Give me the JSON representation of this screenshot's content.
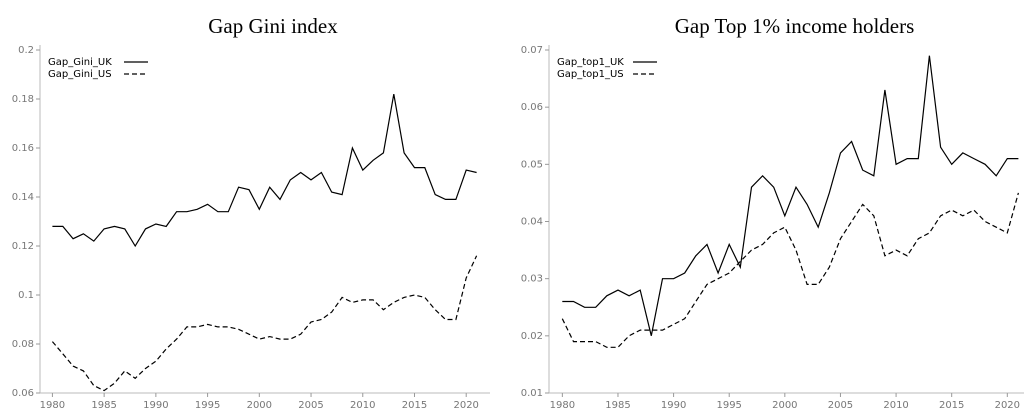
{
  "chart_data": [
    {
      "type": "line",
      "title": "Gap Gini index",
      "x": [
        1980,
        1981,
        1982,
        1983,
        1984,
        1985,
        1986,
        1987,
        1988,
        1989,
        1990,
        1991,
        1992,
        1993,
        1994,
        1995,
        1996,
        1997,
        1998,
        1999,
        2000,
        2001,
        2002,
        2003,
        2004,
        2005,
        2006,
        2007,
        2008,
        2009,
        2010,
        2011,
        2012,
        2013,
        2014,
        2015,
        2016,
        2017,
        2018,
        2019,
        2020,
        2021
      ],
      "series": [
        {
          "name": "Gap_Gini_UK",
          "color": "#000000",
          "dash": "solid",
          "values": [
            0.128,
            0.128,
            0.123,
            0.125,
            0.122,
            0.127,
            0.128,
            0.127,
            0.12,
            0.127,
            0.129,
            0.128,
            0.134,
            0.134,
            0.135,
            0.137,
            0.134,
            0.134,
            0.144,
            0.143,
            0.135,
            0.144,
            0.139,
            0.147,
            0.15,
            0.147,
            0.15,
            0.142,
            0.141,
            0.16,
            0.151,
            0.155,
            0.158,
            0.182,
            0.158,
            0.152,
            0.152,
            0.141,
            0.139,
            0.139,
            0.151,
            0.15
          ]
        },
        {
          "name": "Gap_Gini_US",
          "color": "#000000",
          "dash": "dashed",
          "values": [
            0.081,
            0.076,
            0.071,
            0.069,
            0.063,
            0.061,
            0.064,
            0.069,
            0.066,
            0.07,
            0.073,
            0.078,
            0.082,
            0.087,
            0.087,
            0.088,
            0.087,
            0.087,
            0.086,
            0.084,
            0.082,
            0.083,
            0.082,
            0.082,
            0.084,
            0.089,
            0.09,
            0.093,
            0.099,
            0.097,
            0.098,
            0.098,
            0.094,
            0.097,
            0.099,
            0.1,
            0.099,
            0.094,
            0.09,
            0.09,
            0.107,
            0.116
          ]
        }
      ],
      "xlim": [
        1978.8,
        2022.3
      ],
      "xticks": [
        1980,
        1985,
        1990,
        1995,
        2000,
        2005,
        2010,
        2015,
        2020
      ],
      "ylim": [
        0.06,
        0.2
      ],
      "yticks": [
        0.06,
        0.08,
        0.1,
        0.12,
        0.14,
        0.16,
        0.18,
        0.2
      ],
      "legend": "upper left"
    },
    {
      "type": "line",
      "title": "Gap Top 1% income holders",
      "x": [
        1980,
        1981,
        1982,
        1983,
        1984,
        1985,
        1986,
        1987,
        1988,
        1989,
        1990,
        1991,
        1992,
        1993,
        1994,
        1995,
        1996,
        1997,
        1998,
        1999,
        2000,
        2001,
        2002,
        2003,
        2004,
        2005,
        2006,
        2007,
        2008,
        2009,
        2010,
        2011,
        2012,
        2013,
        2014,
        2015,
        2016,
        2017,
        2018,
        2019,
        2020,
        2021
      ],
      "series": [
        {
          "name": "Gap_top1_UK",
          "color": "#000000",
          "dash": "solid",
          "values": [
            0.026,
            0.026,
            0.025,
            0.025,
            0.027,
            0.028,
            0.027,
            0.028,
            0.02,
            0.03,
            0.03,
            0.031,
            0.034,
            0.036,
            0.031,
            0.036,
            0.032,
            0.046,
            0.048,
            0.046,
            0.041,
            0.046,
            0.043,
            0.039,
            0.045,
            0.052,
            0.054,
            0.049,
            0.048,
            0.063,
            0.05,
            0.051,
            0.051,
            0.069,
            0.053,
            0.05,
            0.052,
            0.051,
            0.05,
            0.048,
            0.051,
            0.051
          ]
        },
        {
          "name": "Gap_top1_US",
          "color": "#000000",
          "dash": "dashed",
          "values": [
            0.023,
            0.019,
            0.019,
            0.019,
            0.018,
            0.018,
            0.02,
            0.021,
            0.021,
            0.021,
            0.022,
            0.023,
            0.026,
            0.029,
            0.03,
            0.031,
            0.033,
            0.035,
            0.036,
            0.038,
            0.039,
            0.035,
            0.029,
            0.029,
            0.032,
            0.037,
            0.04,
            0.043,
            0.041,
            0.034,
            0.035,
            0.034,
            0.037,
            0.038,
            0.041,
            0.042,
            0.041,
            0.042,
            0.04,
            0.039,
            0.038,
            0.045
          ]
        }
      ],
      "xlim": [
        1978.8,
        2021.5
      ],
      "xticks": [
        1980,
        1985,
        1990,
        1995,
        2000,
        2005,
        2010,
        2015,
        2020
      ],
      "ylim": [
        0.01,
        0.07
      ],
      "yticks": [
        0.01,
        0.02,
        0.03,
        0.04,
        0.05,
        0.06,
        0.07
      ],
      "legend": "upper left"
    }
  ]
}
